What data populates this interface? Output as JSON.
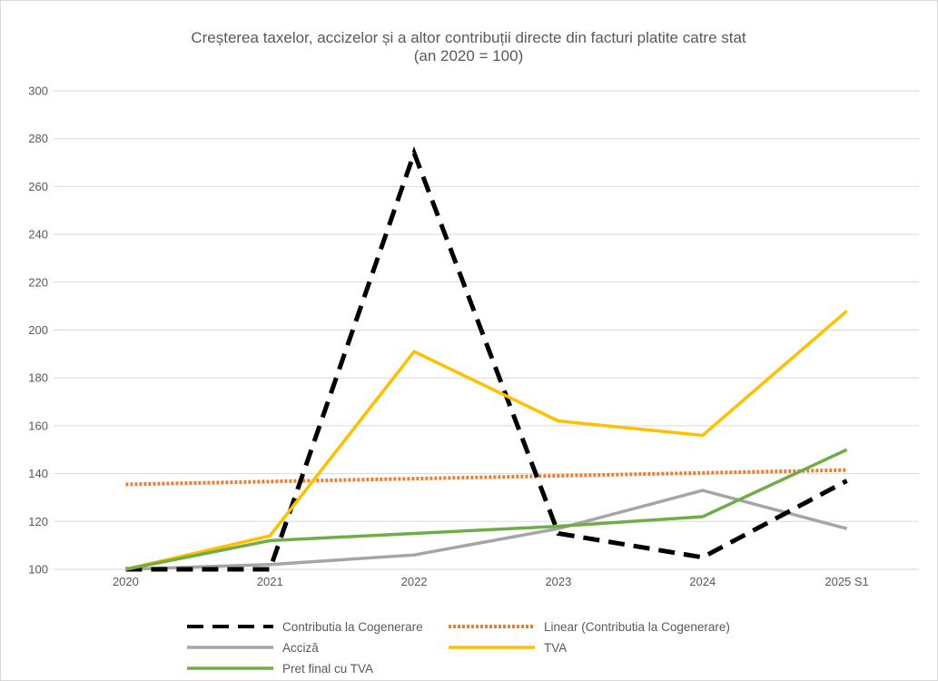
{
  "chart_data": {
    "type": "line",
    "title": "Creșterea taxelor, accizelor și a altor contribuții directe din facturi platite catre stat",
    "subtitle": "(an 2020 = 100)",
    "categories": [
      "2020",
      "2021",
      "2022",
      "2023",
      "2024",
      "2025 S1"
    ],
    "ylim": [
      100,
      300
    ],
    "yticks": [
      100,
      120,
      140,
      160,
      180,
      200,
      220,
      240,
      260,
      280,
      300
    ],
    "grid": true,
    "legend_position": "bottom",
    "series": [
      {
        "name": "Contributia la Cogenerare",
        "values": [
          100,
          100,
          274,
          115,
          105,
          137
        ],
        "color": "#000000",
        "style": "dashed"
      },
      {
        "name": "Linear (Contributia la Cogenerare)",
        "values": [
          135.5,
          136.7,
          137.9,
          139.1,
          140.3,
          141.5
        ],
        "color": "#ED7D31",
        "style": "dotted"
      },
      {
        "name": "Acciză",
        "values": [
          100,
          102,
          106,
          117,
          133,
          117
        ],
        "color": "#A5A5A5",
        "style": "solid"
      },
      {
        "name": "TVA",
        "values": [
          100,
          114,
          191,
          162,
          156,
          208
        ],
        "color": "#FFC000",
        "style": "solid"
      },
      {
        "name": "Pret final cu TVA",
        "values": [
          100,
          112,
          115,
          118,
          122,
          150
        ],
        "color": "#70AD47",
        "style": "solid"
      }
    ]
  }
}
